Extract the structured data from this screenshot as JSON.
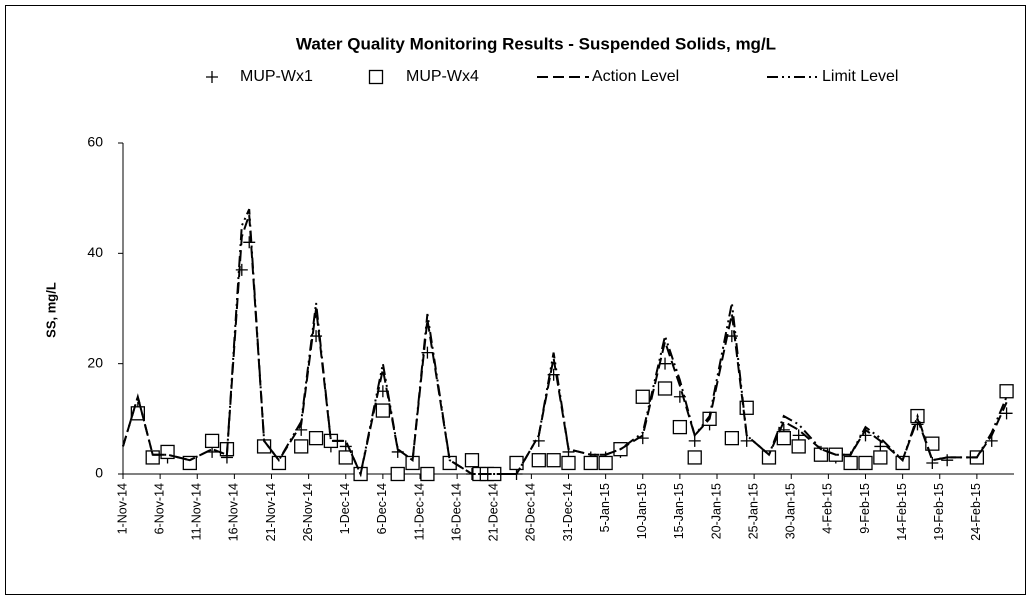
{
  "chart_data": {
    "type": "line",
    "title": "Water Quality Monitoring Results - Suspended Solids, mg/L",
    "y_label": "SS, mg/L",
    "x": [
      "2014-11-01",
      "2014-11-03",
      "2014-11-05",
      "2014-11-07",
      "2014-11-10",
      "2014-11-13",
      "2014-11-15",
      "2014-11-17",
      "2014-11-18",
      "2014-11-20",
      "2014-11-22",
      "2014-11-25",
      "2014-11-27",
      "2014-11-29",
      "2014-12-01",
      "2014-12-03",
      "2014-12-06",
      "2014-12-08",
      "2014-12-10",
      "2014-12-12",
      "2014-12-15",
      "2014-12-18",
      "2014-12-19",
      "2014-12-20",
      "2014-12-21",
      "2014-12-24",
      "2014-12-27",
      "2014-12-29",
      "2014-12-31",
      "2015-01-03",
      "2015-01-05",
      "2015-01-07",
      "2015-01-10",
      "2015-01-13",
      "2015-01-15",
      "2015-01-17",
      "2015-01-19",
      "2015-01-22",
      "2015-01-24",
      "2015-01-27",
      "2015-01-29",
      "2015-01-31",
      "2015-02-03",
      "2015-02-05",
      "2015-02-07",
      "2015-02-09",
      "2015-02-11",
      "2015-02-14",
      "2015-02-16",
      "2015-02-18",
      "2015-02-20",
      "2015-02-24",
      "2015-02-26",
      "2015-02-28"
    ],
    "series": [
      {
        "name": "MUP-Wx1",
        "color": "#000000",
        "marker": "plus",
        "values": [
          null,
          12,
          3,
          3,
          2,
          4,
          3,
          37,
          42,
          5,
          2,
          8,
          25,
          5,
          5,
          0,
          15,
          4,
          2,
          22,
          2,
          0,
          0,
          0,
          0,
          0,
          6,
          18,
          4,
          3,
          3,
          4,
          6.5,
          20,
          14,
          6,
          9,
          25,
          6,
          3,
          8,
          7,
          4,
          3,
          3,
          7,
          5,
          2,
          9,
          2,
          2.5,
          3,
          6,
          11
        ]
      },
      {
        "name": "MUP-Wx4",
        "color": "#000000",
        "marker": "square",
        "values": [
          null,
          11,
          3,
          4,
          2,
          6,
          4.5,
          null,
          null,
          5,
          2,
          5,
          6.5,
          6,
          3,
          0,
          11.5,
          0,
          2,
          0,
          2,
          2.5,
          0,
          0,
          0,
          2,
          2.5,
          2.5,
          2,
          2,
          2,
          4.5,
          14,
          15.5,
          8.5,
          3,
          10,
          6.5,
          12,
          3,
          6.5,
          5,
          3.5,
          3.5,
          2,
          2,
          3,
          2,
          10.5,
          5.5,
          null,
          3,
          null,
          15
        ]
      },
      {
        "name": "Action Level",
        "color": "#000000",
        "dash": "dashed",
        "values": [
          5,
          14,
          3.5,
          3.5,
          2.5,
          4.5,
          3.5,
          43,
          47,
          6,
          2.5,
          9,
          30,
          6,
          6,
          0,
          19,
          4.5,
          2.5,
          28,
          2.5,
          0,
          0,
          0,
          0,
          0,
          7,
          21,
          4.5,
          3.5,
          3.5,
          4.5,
          7,
          24,
          16,
          7,
          10,
          29,
          7,
          3.5,
          9.5,
          8,
          4.5,
          3.5,
          3.5,
          8,
          6,
          2.5,
          10,
          2.5,
          3,
          3,
          7,
          13
        ]
      },
      {
        "name": "Limit Level",
        "color": "#000000",
        "dash": "dashdot",
        "values": [
          5,
          14,
          3.5,
          3.5,
          2.5,
          4.5,
          3.5,
          45,
          48,
          6,
          2.5,
          9.5,
          31,
          6,
          6,
          0,
          20,
          4.5,
          2.5,
          29,
          2.5,
          0,
          0,
          0,
          0,
          0,
          7,
          22,
          4.5,
          3.5,
          3.5,
          4.5,
          7.5,
          25,
          17,
          7,
          10.5,
          31,
          7,
          3.5,
          10.5,
          9,
          4.5,
          3.5,
          3.5,
          8.5,
          6.5,
          2.5,
          10.5,
          2.5,
          3,
          3,
          7.5,
          14
        ]
      }
    ],
    "xlim": [
      "2014-11-01",
      "2015-03-01"
    ],
    "xticks": [
      {
        "value": "2014-11-01",
        "label": "1-Nov-14"
      },
      {
        "value": "2014-11-06",
        "label": "6-Nov-14"
      },
      {
        "value": "2014-11-11",
        "label": "11-Nov-14"
      },
      {
        "value": "2014-11-16",
        "label": "16-Nov-14"
      },
      {
        "value": "2014-11-21",
        "label": "21-Nov-14"
      },
      {
        "value": "2014-11-26",
        "label": "26-Nov-14"
      },
      {
        "value": "2014-12-01",
        "label": "1-Dec-14"
      },
      {
        "value": "2014-12-06",
        "label": "6-Dec-14"
      },
      {
        "value": "2014-12-11",
        "label": "11-Dec-14"
      },
      {
        "value": "2014-12-16",
        "label": "16-Dec-14"
      },
      {
        "value": "2014-12-21",
        "label": "21-Dec-14"
      },
      {
        "value": "2014-12-26",
        "label": "26-Dec-14"
      },
      {
        "value": "2014-12-31",
        "label": "31-Dec-14"
      },
      {
        "value": "2015-01-05",
        "label": "5-Jan-15"
      },
      {
        "value": "2015-01-10",
        "label": "10-Jan-15"
      },
      {
        "value": "2015-01-15",
        "label": "15-Jan-15"
      },
      {
        "value": "2015-01-20",
        "label": "20-Jan-15"
      },
      {
        "value": "2015-01-25",
        "label": "25-Jan-15"
      },
      {
        "value": "2015-01-30",
        "label": "30-Jan-15"
      },
      {
        "value": "2015-02-04",
        "label": "4-Feb-15"
      },
      {
        "value": "2015-02-09",
        "label": "9-Feb-15"
      },
      {
        "value": "2015-02-14",
        "label": "14-Feb-15"
      },
      {
        "value": "2015-02-19",
        "label": "19-Feb-15"
      },
      {
        "value": "2015-02-24",
        "label": "24-Feb-15"
      }
    ],
    "ylim": [
      0,
      60
    ],
    "yticks": [
      0,
      20,
      40,
      60
    ],
    "grid": false,
    "legend": "top"
  }
}
